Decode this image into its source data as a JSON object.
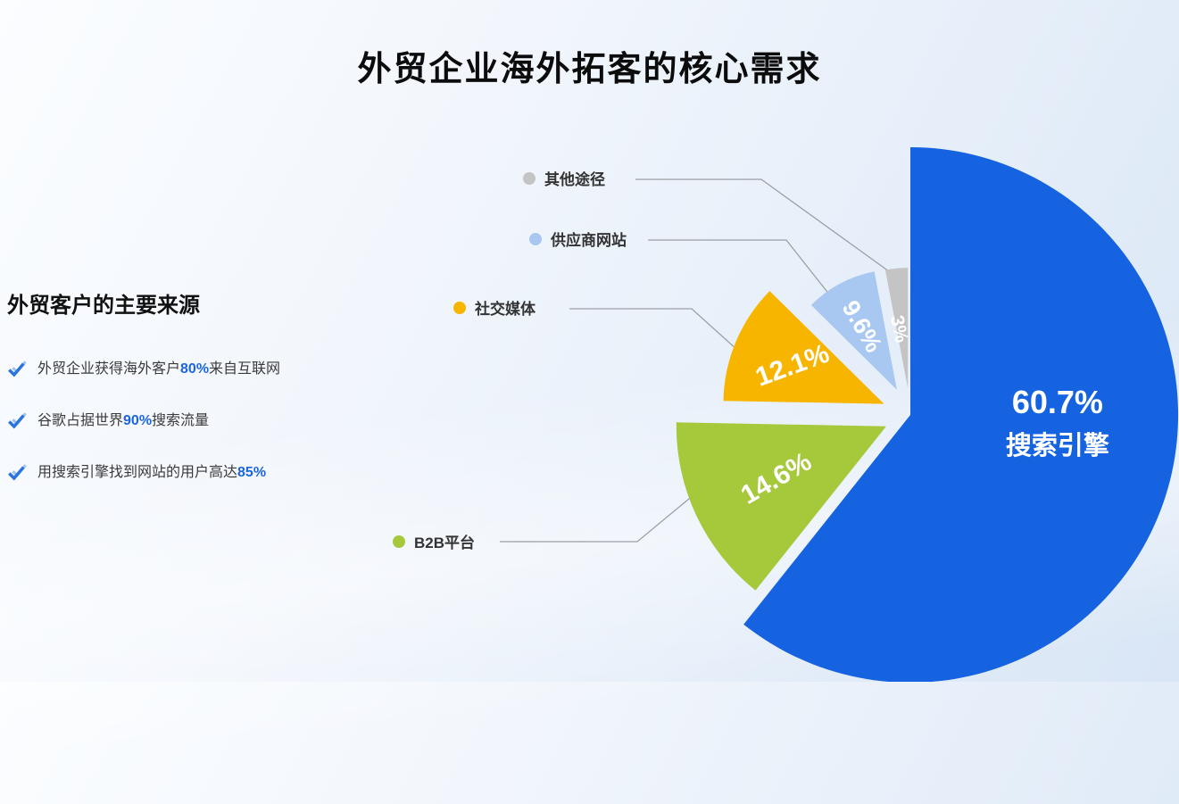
{
  "page": {
    "title": "外贸企业海外拓客的核心需求"
  },
  "sources": {
    "heading": "外贸客户的主要来源",
    "items": [
      {
        "prefix": "外贸企业获得海外客户",
        "highlight": "80%",
        "suffix": "来自互联网"
      },
      {
        "prefix": "谷歌占据世界",
        "highlight": "90%",
        "suffix": "搜索流量"
      },
      {
        "prefix": "用搜索引擎找到网站的用户高达",
        "highlight": "85%",
        "suffix": ""
      }
    ],
    "highlight_color": "#1B66DE"
  },
  "chart_data": {
    "type": "pie",
    "title": "外贸企业海外拓客的核心需求",
    "unit": "percent",
    "direction": "clockwise",
    "start_angle": "12 o'clock",
    "legend_position": "callout labels left of slices",
    "slices": [
      {
        "label": "搜索引擎",
        "value": 60.7,
        "pct_text": "60.7%",
        "color": "#1563E0",
        "label_inside": true
      },
      {
        "label": "B2B平台",
        "value": 14.6,
        "pct_text": "14.6%",
        "color": "#A6C83B"
      },
      {
        "label": "社交媒体",
        "value": 12.1,
        "pct_text": "12.1%",
        "color": "#F8B500"
      },
      {
        "label": "供应商网站",
        "value": 9.6,
        "pct_text": "9.6%",
        "color": "#A8C8F2"
      },
      {
        "label": "其他途径",
        "value": 3,
        "pct_text": "3%",
        "color": "#C4C4C4"
      }
    ]
  }
}
